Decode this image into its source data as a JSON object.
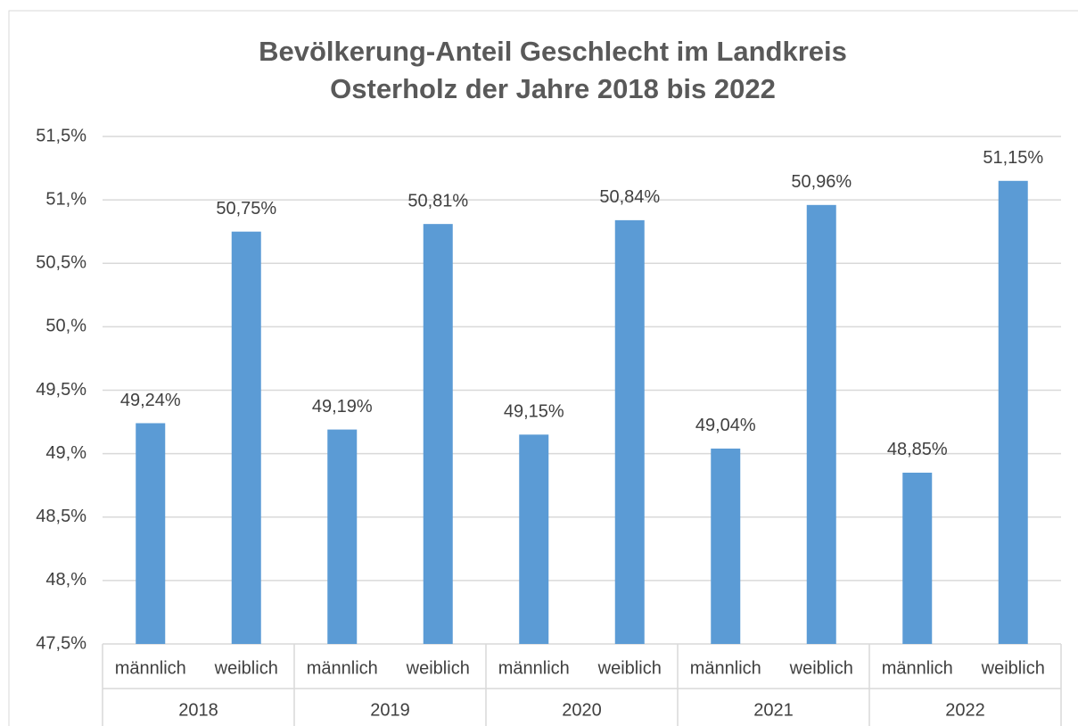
{
  "chart_data": {
    "type": "bar",
    "title": [
      "Bevölkerung-Anteil Geschlecht im Landkreis",
      "Osterholz der Jahre 2018 bis 2022"
    ],
    "categories": [
      "männlich",
      "weiblich",
      "männlich",
      "weiblich",
      "männlich",
      "weiblich",
      "männlich",
      "weiblich",
      "männlich",
      "weiblich"
    ],
    "groups": [
      "2018",
      "2019",
      "2020",
      "2021",
      "2022"
    ],
    "values": [
      49.24,
      50.75,
      49.19,
      50.81,
      49.15,
      50.84,
      49.04,
      50.96,
      48.85,
      51.15
    ],
    "value_labels": [
      "49,24%",
      "50,75%",
      "49,19%",
      "50,81%",
      "49,15%",
      "50,84%",
      "49,04%",
      "50,96%",
      "48,85%",
      "51,15%"
    ],
    "color": "#5b9bd5",
    "ylim": [
      47.5,
      51.5
    ],
    "yticks": [
      {
        "value": 47.5,
        "label": "47,5%"
      },
      {
        "value": 48,
        "label": "48,%"
      },
      {
        "value": 48.5,
        "label": "48,5%"
      },
      {
        "value": 49,
        "label": "49,%"
      },
      {
        "value": 49.5,
        "label": "49,5%"
      },
      {
        "value": 50,
        "label": "50,%"
      },
      {
        "value": 50.5,
        "label": "50,5%"
      },
      {
        "value": 51,
        "label": "51,%"
      },
      {
        "value": 51.5,
        "label": "51,5%"
      }
    ],
    "grid": true
  }
}
